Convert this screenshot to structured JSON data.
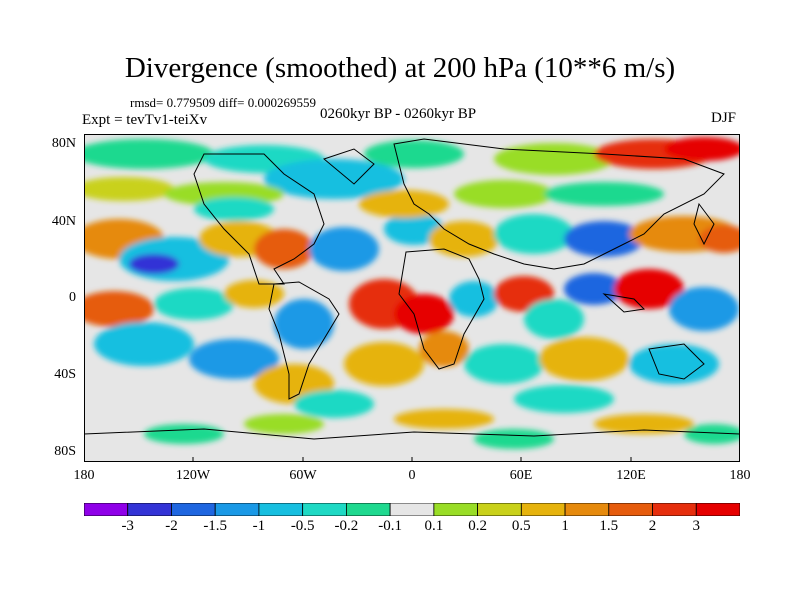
{
  "title": "Divergence (smoothed) at 200 hPa (10**6 m/s)",
  "stats": "rmsd= 0.779509 diff= 0.000269559",
  "period": "0260kyr BP - 0260kyr BP",
  "experiment": "Expt = tevTv1-teiXv",
  "season": "DJF",
  "lat_ticks": [
    "80N",
    "40N",
    "0",
    "40S",
    "80S"
  ],
  "lon_ticks": [
    "180",
    "120W",
    "60W",
    "0",
    "60E",
    "120E",
    "180"
  ],
  "colorbar": {
    "labels": [
      "-3",
      "-2",
      "-1.5",
      "-1",
      "-0.5",
      "-0.2",
      "-0.1",
      "0.1",
      "0.2",
      "0.5",
      "1",
      "1.5",
      "2",
      "3"
    ],
    "colors": [
      "#8f00e8",
      "#3333d6",
      "#1f66e0",
      "#1a99e6",
      "#17bfe0",
      "#1fd9c4",
      "#1fd98f",
      "#e6e6e6",
      "#99dd26",
      "#c9d11a",
      "#e6b30d",
      "#e68a0d",
      "#e65c0d",
      "#e62e0d",
      "#e60000"
    ]
  }
}
